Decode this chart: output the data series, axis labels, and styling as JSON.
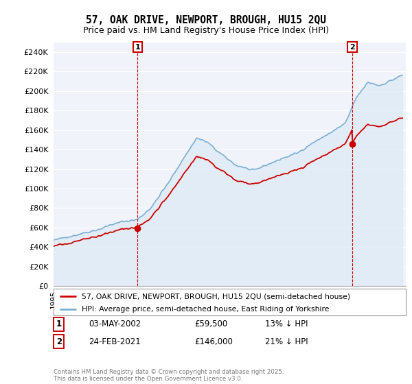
{
  "title": "57, OAK DRIVE, NEWPORT, BROUGH, HU15 2QU",
  "subtitle": "Price paid vs. HM Land Registry's House Price Index (HPI)",
  "legend_line1": "57, OAK DRIVE, NEWPORT, BROUGH, HU15 2QU (semi-detached house)",
  "legend_line2": "HPI: Average price, semi-detached house, East Riding of Yorkshire",
  "annotation1_date": "03-MAY-2002",
  "annotation1_price": "£59,500",
  "annotation1_hpi": "13% ↓ HPI",
  "annotation2_date": "24-FEB-2021",
  "annotation2_price": "£146,000",
  "annotation2_hpi": "21% ↓ HPI",
  "copyright": "Contains HM Land Registry data © Crown copyright and database right 2025.\nThis data is licensed under the Open Government Licence v3.0.",
  "line_color_red": "#cc0000",
  "line_color_blue": "#7bafd4",
  "fill_color_blue": "#dce9f5",
  "annotation_box_color": "#cc0000",
  "ylim": [
    0,
    250000
  ],
  "purchase1_year": 2002.34,
  "purchase1_price": 59500,
  "purchase2_year": 2021.12,
  "purchase2_price": 146000,
  "background_color": "#f0f4fa"
}
